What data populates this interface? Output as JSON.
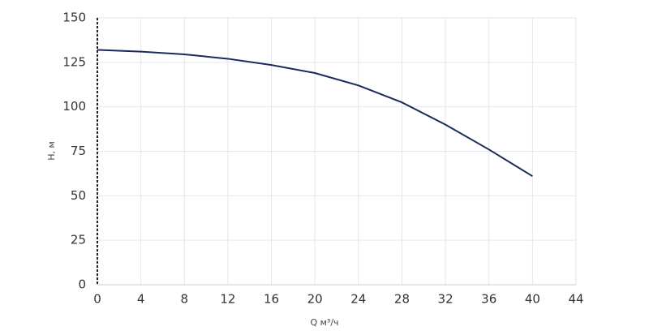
{
  "chart_data": {
    "type": "line",
    "x_label": "Q м³/ч",
    "y_label": "H, м",
    "x": [
      0,
      4,
      8,
      12,
      16,
      20,
      24,
      28,
      32,
      36,
      40
    ],
    "series": [
      {
        "color": "#1c2a5a",
        "values": [
          132,
          131,
          129.5,
          127,
          123.5,
          119,
          112,
          102.5,
          90,
          76,
          61
        ]
      }
    ],
    "xlim": [
      0,
      44
    ],
    "xticks": [
      0,
      4,
      8,
      12,
      16,
      20,
      24,
      28,
      32,
      36,
      40,
      44
    ],
    "ylim": [
      0,
      150
    ],
    "yticks": [
      0,
      25,
      50,
      75,
      100,
      125,
      150
    ],
    "grid": true
  }
}
